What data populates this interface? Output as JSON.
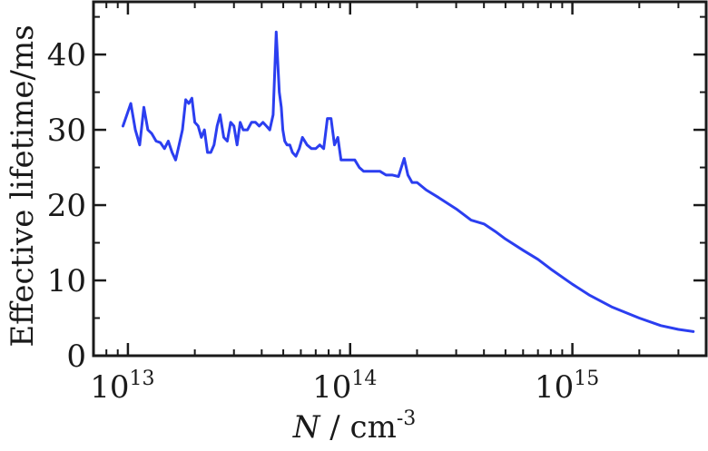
{
  "chart_data": {
    "type": "line",
    "title": "",
    "xlabel": "N / cm-3",
    "xlabel_parts": {
      "var": "N",
      "sep": " / ",
      "unit": "cm",
      "exp": "-3"
    },
    "ylabel": "Effective lifetime/ms",
    "xscale": "log",
    "xlim": [
      7000000000000.0,
      4000000000000000.0
    ],
    "ylim": [
      0,
      47
    ],
    "x_ticks": [
      {
        "value": 10000000000000.0,
        "base": "10",
        "exp": "13"
      },
      {
        "value": 100000000000000.0,
        "base": "10",
        "exp": "14"
      },
      {
        "value": 1000000000000000.0,
        "base": "10",
        "exp": "15"
      }
    ],
    "y_ticks": [
      0,
      10,
      20,
      30,
      40
    ],
    "grid": false,
    "line_color": "#2b3ef0",
    "axis_color": "#1a1a1a",
    "series": [
      {
        "x": [
          9500000000000.0,
          10300000000000.0,
          10800000000000.0,
          11300000000000.0,
          11800000000000.0,
          12300000000000.0,
          12800000000000.0,
          13400000000000.0,
          14000000000000.0,
          14600000000000.0,
          15200000000000.0,
          15800000000000.0,
          16400000000000.0,
          17000000000000.0,
          17600000000000.0,
          18200000000000.0,
          18800000000000.0,
          19400000000000.0,
          20000000000000.0,
          20700000000000.0,
          21400000000000.0,
          22100000000000.0,
          22800000000000.0,
          23600000000000.0,
          24400000000000.0,
          25200000000000.0,
          26000000000000.0,
          27000000000000.0,
          28000000000000.0,
          29000000000000.0,
          30000000000000.0,
          31000000000000.0,
          32000000000000.0,
          33000000000000.0,
          34500000000000.0,
          36000000000000.0,
          37500000000000.0,
          39000000000000.0,
          40500000000000.0,
          42000000000000.0,
          43500000000000.0,
          45000000000000.0,
          46500000000000.0,
          48000000000000.0,
          49000000000000.0,
          49800000000000.0,
          50800000000000.0,
          52000000000000.0,
          53500000000000.0,
          55000000000000.0,
          57000000000000.0,
          59000000000000.0,
          61000000000000.0,
          64000000000000.0,
          67000000000000.0,
          70000000000000.0,
          73000000000000.0,
          76000000000000.0,
          79000000000000.0,
          82000000000000.0,
          85000000000000.0,
          88000000000000.0,
          91000000000000.0,
          94000000000000.0,
          97000000000000.0,
          100000000000000.0,
          105000000000000.0,
          110000000000000.0,
          115000000000000.0,
          120000000000000.0,
          128000000000000.0,
          136000000000000.0,
          145000000000000.0,
          155000000000000.0,
          165000000000000.0,
          175000000000000.0,
          182000000000000.0,
          190000000000000.0,
          200000000000000.0,
          220000000000000.0,
          250000000000000.0,
          300000000000000.0,
          350000000000000.0,
          400000000000000.0,
          450000000000000.0,
          500000000000000.0,
          600000000000000.0,
          700000000000000.0,
          800000000000000.0,
          1000000000000000.0,
          1200000000000000.0,
          1500000000000000.0,
          2000000000000000.0,
          2500000000000000.0,
          3000000000000000.0,
          3500000000000000.0
        ],
        "y": [
          30.5,
          33.5,
          30,
          28,
          33,
          30,
          29.5,
          28.5,
          28.3,
          27.5,
          28.5,
          27,
          26,
          28,
          30,
          34,
          33.5,
          34.2,
          31,
          30.5,
          29,
          30,
          27,
          27,
          28,
          30.5,
          32,
          29,
          28.5,
          31,
          30.5,
          28,
          31,
          30,
          30,
          31,
          31,
          30.5,
          31,
          30.5,
          30,
          32,
          43,
          35,
          33,
          30,
          28.5,
          28,
          28,
          27,
          26.5,
          27.5,
          29,
          28,
          27.5,
          27.5,
          28,
          27.5,
          31.5,
          31.5,
          28,
          29,
          26,
          26,
          26,
          26,
          26,
          25,
          24.5,
          24.5,
          24.5,
          24.5,
          24,
          24,
          23.8,
          26.2,
          24,
          23,
          23,
          22,
          21,
          19.5,
          18,
          17.5,
          16.5,
          15.5,
          14,
          12.8,
          11.5,
          9.5,
          8,
          6.5,
          5,
          4,
          3.5,
          3.2
        ]
      }
    ]
  }
}
